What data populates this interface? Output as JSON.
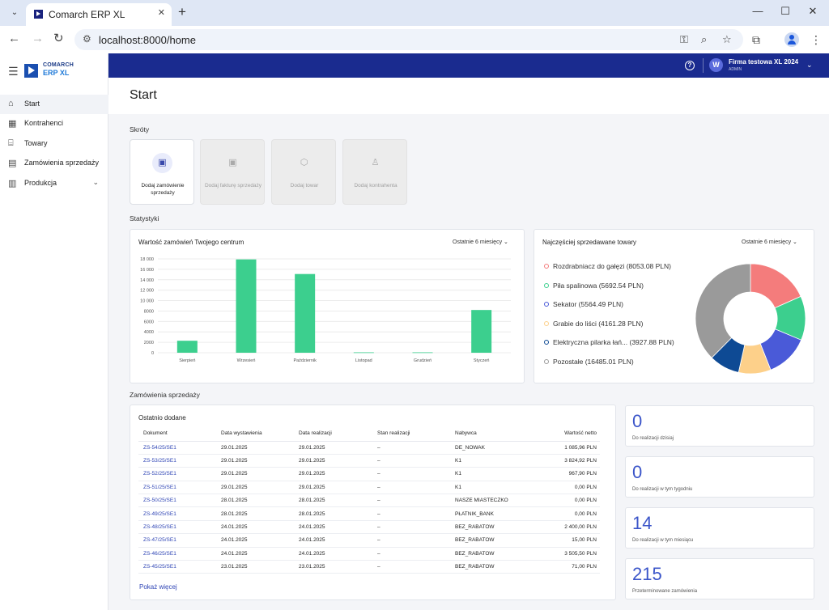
{
  "browser": {
    "tab_title": "Comarch ERP XL",
    "url": "localhost:8000/home"
  },
  "sidebar": {
    "logo_line1": "COMARCH",
    "logo_line2": "ERP XL",
    "items": [
      {
        "label": "Start",
        "icon": "home-icon"
      },
      {
        "label": "Kontrahenci",
        "icon": "building-icon"
      },
      {
        "label": "Towary",
        "icon": "store-icon"
      },
      {
        "label": "Zamówienia sprzedaży",
        "icon": "order-icon"
      },
      {
        "label": "Produkcja",
        "icon": "factory-icon"
      }
    ]
  },
  "topbar": {
    "avatar_letter": "W",
    "company": "Firma testowa XL 2024",
    "role": "ADMIN"
  },
  "page": {
    "title": "Start"
  },
  "shortcuts": {
    "label": "Skróty",
    "items": [
      {
        "label": "Dodaj zamówienie sprzedaży",
        "enabled": true,
        "icon": "add-order-icon"
      },
      {
        "label": "Dodaj fakturę sprzedaży",
        "enabled": false,
        "icon": "add-invoice-icon"
      },
      {
        "label": "Dodaj towar",
        "enabled": false,
        "icon": "cube-icon"
      },
      {
        "label": "Dodaj kontrahenta",
        "enabled": false,
        "icon": "person-icon"
      }
    ]
  },
  "stats": {
    "label": "Statystyki",
    "bar_card": {
      "title": "Wartość zamówień Twojego centrum",
      "filter": "Ostatnie 6 miesięcy"
    },
    "pie_card": {
      "title": "Najczęściej sprzedawane towary",
      "filter": "Ostatnie 6 miesięcy"
    }
  },
  "chart_data": [
    {
      "type": "bar",
      "title": "Wartość zamówień Twojego centrum",
      "categories": [
        "Sierpień",
        "Wrzesień",
        "Październik",
        "Listopad",
        "Grudzień",
        "Styczeń"
      ],
      "values": [
        2300,
        17900,
        15100,
        80,
        80,
        8200
      ],
      "yticks": [
        "0",
        "2000",
        "4000",
        "6000",
        "8000",
        "10 000",
        "12 000",
        "14 000",
        "16 000",
        "18 000"
      ],
      "ylim": [
        0,
        18000
      ],
      "grid": true,
      "color": "#3ccf8e"
    },
    {
      "type": "pie",
      "title": "Najczęściej sprzedawane towary",
      "donut": true,
      "legend_position": "left",
      "slices": [
        {
          "label": "Rozdrabniacz do gałęzi (8053.08 PLN)",
          "value": 8053.08,
          "color": "#f47c7c"
        },
        {
          "label": "Piła spalinowa (5692.54 PLN)",
          "value": 5692.54,
          "color": "#3ccf8e"
        },
        {
          "label": "Sekator (5564.49 PLN)",
          "value": 5564.49,
          "color": "#4a5ad8"
        },
        {
          "label": "Grabie do liści (4161.28 PLN)",
          "value": 4161.28,
          "color": "#fdd08a"
        },
        {
          "label": "Elektryczna pilarka łań... (3927.88 PLN)",
          "value": 3927.88,
          "color": "#0e4a94"
        },
        {
          "label": "Pozostałe (16485.01 PLN)",
          "value": 16485.01,
          "color": "#9a9a9a"
        }
      ]
    }
  ],
  "orders": {
    "label": "Zamówienia sprzedaży",
    "card_title": "Ostatnio dodane",
    "columns": [
      "Dokument",
      "Data wystawienia",
      "Data realizacji",
      "Stan realizacji",
      "Nabywca",
      "Wartość netto"
    ],
    "rows": [
      [
        "ZS-54/25/SE1",
        "29.01.2025",
        "29.01.2025",
        "–",
        "DE_NOWAK",
        "1 085,96 PLN"
      ],
      [
        "ZS-53/25/SE1",
        "29.01.2025",
        "29.01.2025",
        "–",
        "K1",
        "3 824,92 PLN"
      ],
      [
        "ZS-52/25/SE1",
        "29.01.2025",
        "29.01.2025",
        "–",
        "K1",
        "967,90 PLN"
      ],
      [
        "ZS-51/25/SE1",
        "29.01.2025",
        "29.01.2025",
        "–",
        "K1",
        "0,00 PLN"
      ],
      [
        "ZS-50/25/SE1",
        "28.01.2025",
        "28.01.2025",
        "–",
        "NASZE MIASTECZKO",
        "0,00 PLN"
      ],
      [
        "ZS-49/25/SE1",
        "28.01.2025",
        "28.01.2025",
        "–",
        "PŁATNIK_BANK",
        "0,00 PLN"
      ],
      [
        "ZS-48/25/SE1",
        "24.01.2025",
        "24.01.2025",
        "–",
        "BEZ_RABATOW",
        "2 400,00 PLN"
      ],
      [
        "ZS-47/25/SE1",
        "24.01.2025",
        "24.01.2025",
        "–",
        "BEZ_RABATOW",
        "15,00 PLN"
      ],
      [
        "ZS-46/25/SE1",
        "24.01.2025",
        "24.01.2025",
        "–",
        "BEZ_RABATOW",
        "3 505,50 PLN"
      ],
      [
        "ZS-45/25/SE1",
        "23.01.2025",
        "23.01.2025",
        "–",
        "BEZ_RABATOW",
        "71,00 PLN"
      ]
    ],
    "show_more": "Pokaż więcej"
  },
  "summary": [
    {
      "value": "0",
      "label": "Do realizacji dzisiaj"
    },
    {
      "value": "0",
      "label": "Do realizacji w tym tygodniu"
    },
    {
      "value": "14",
      "label": "Do realizacji w tym miesiącu"
    },
    {
      "value": "215",
      "label": "Przeterminowane zamówienia"
    }
  ]
}
